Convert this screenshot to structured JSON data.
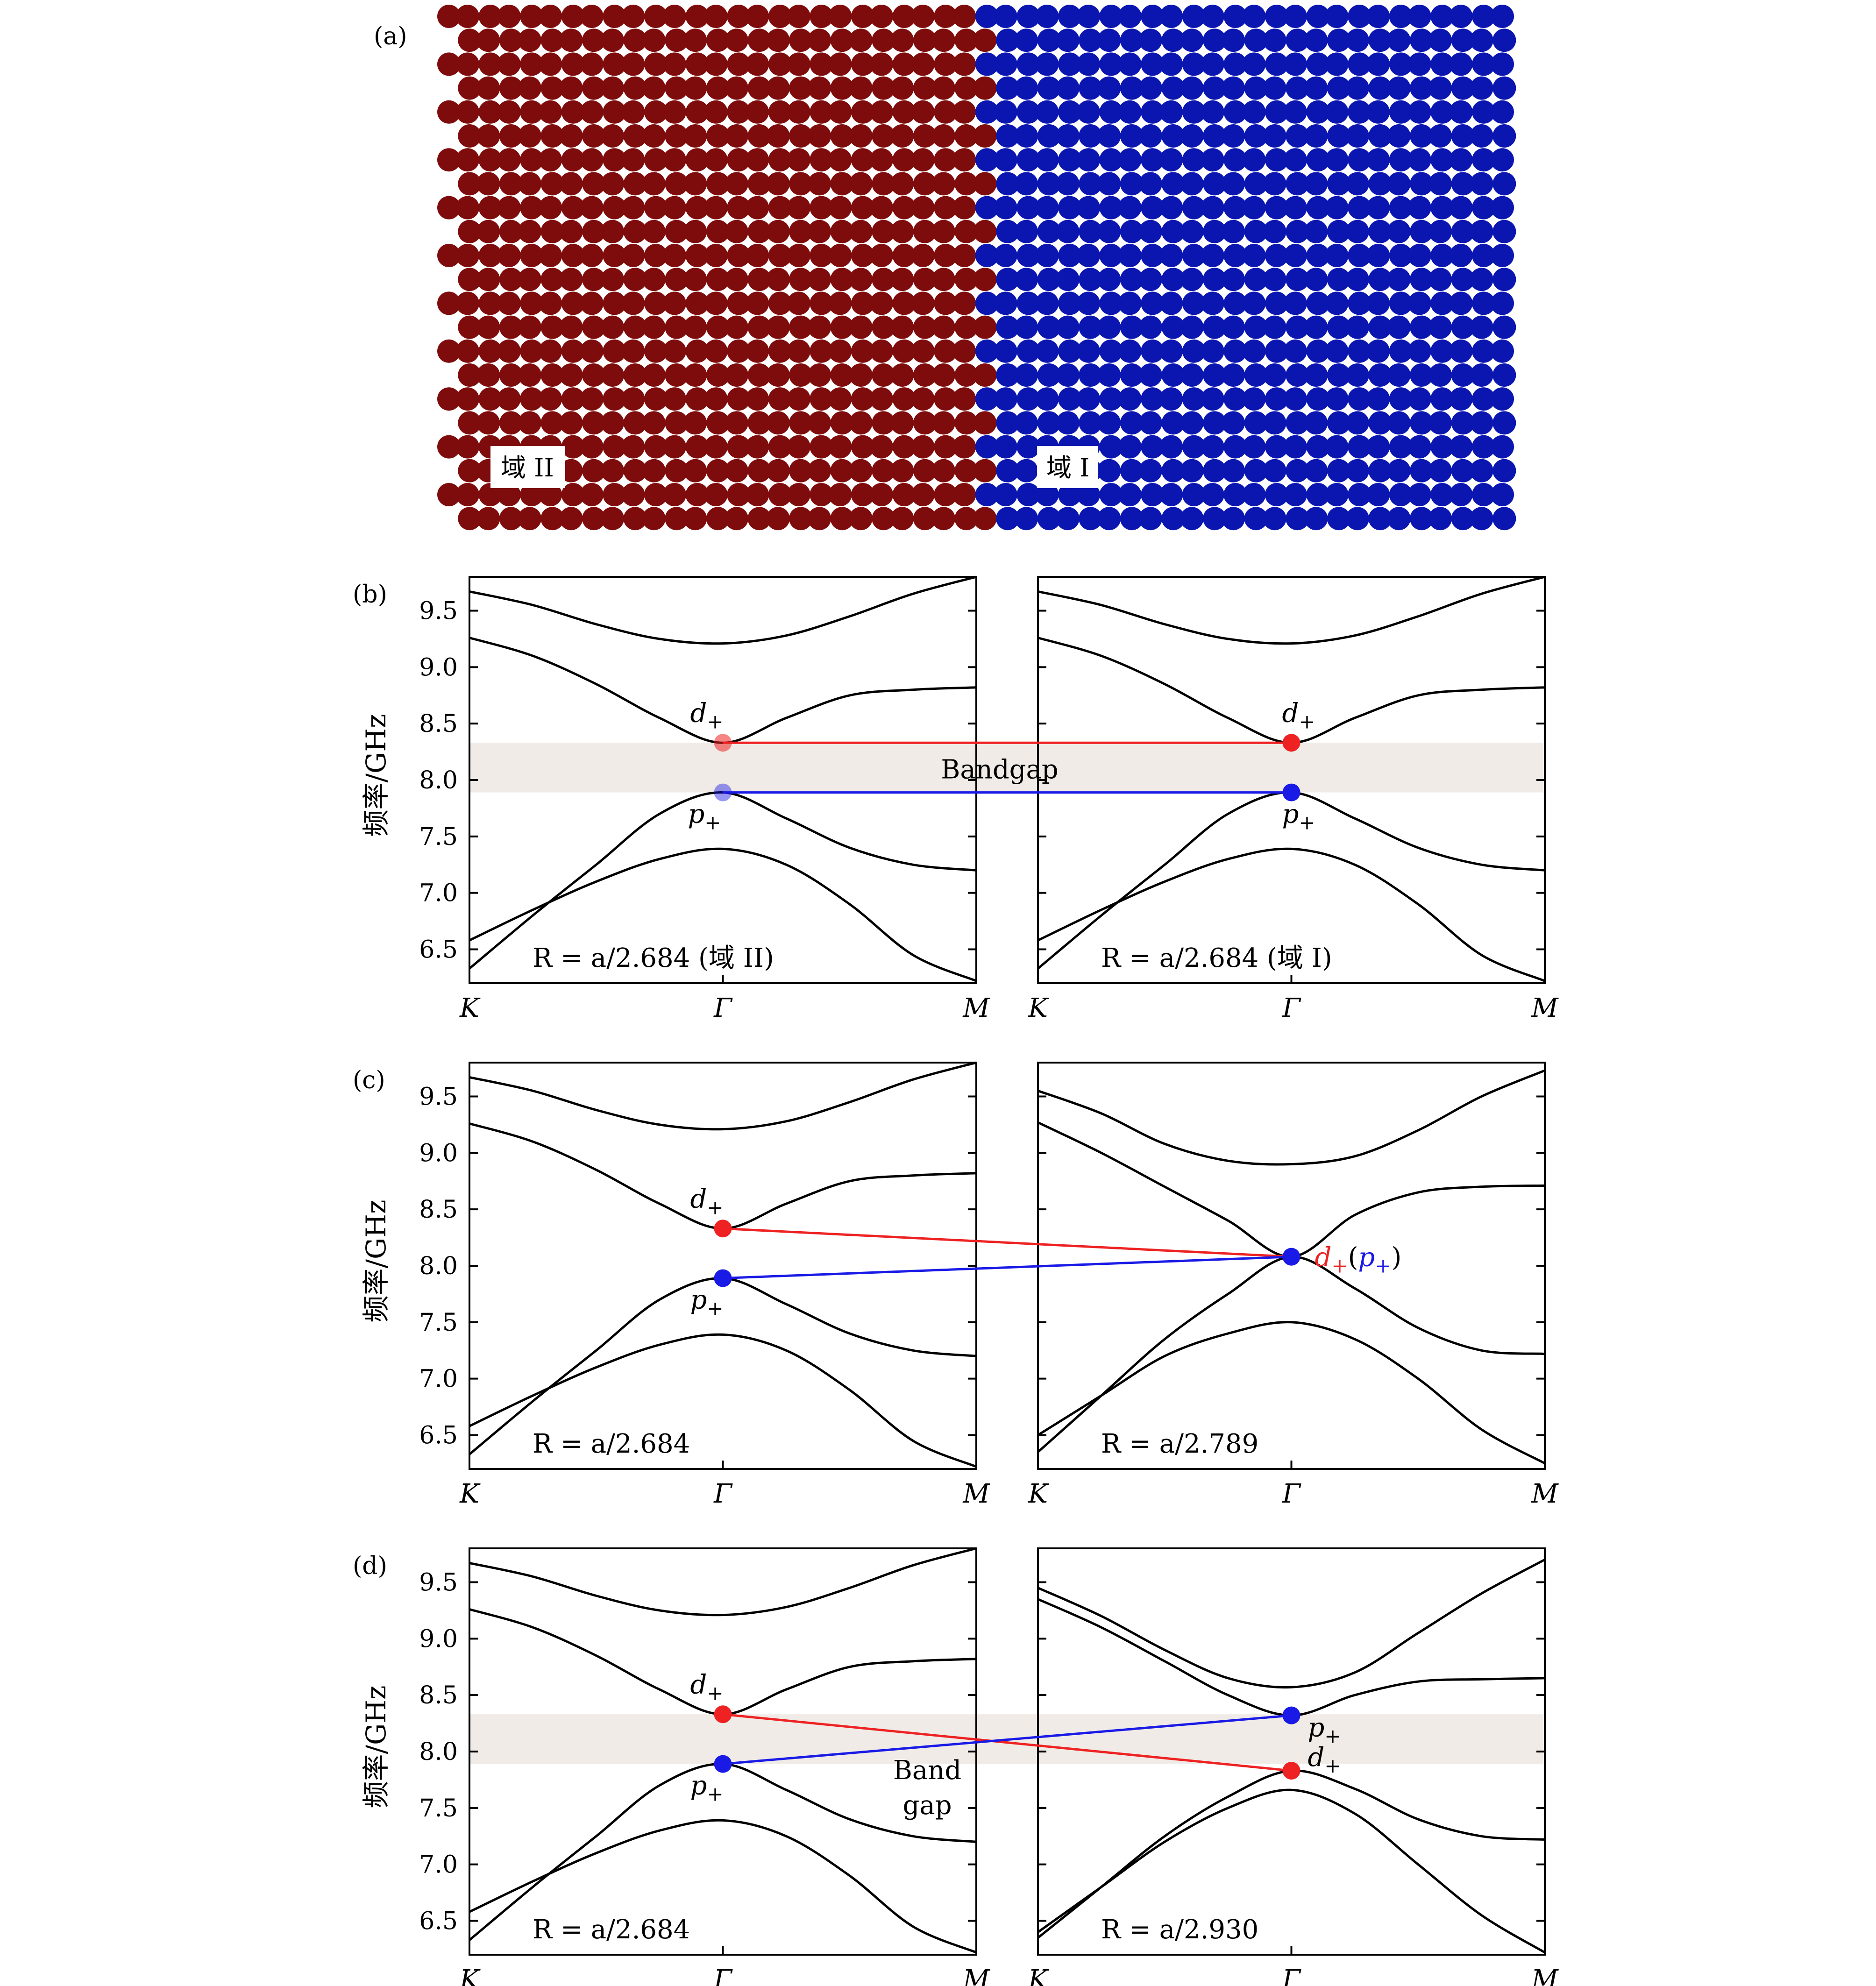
{
  "figure": {
    "panel_labels": [
      "(a)",
      "(b)",
      "(c)",
      "(d)"
    ],
    "lattice": {
      "domain_left_label": "域 II",
      "domain_right_label": "域 I",
      "left_color": "#7f0c0c",
      "right_color": "#0b16b0"
    },
    "ylabel": "频率/GHz",
    "xticks": [
      "K",
      "Γ",
      "M"
    ],
    "yticks": [
      "6.5",
      "7.0",
      "7.5",
      "8.0",
      "8.5",
      "9.0",
      "9.5"
    ],
    "ylim": [
      6.2,
      9.8
    ],
    "colors": {
      "d_mode": "#ee2222",
      "p_mode": "#1a1ae6",
      "bandgap": "#f0ebe6",
      "band": "#000000"
    },
    "mode_labels": {
      "d": "d",
      "p": "p",
      "sub": "+"
    },
    "bandgap_label": "Bandgap",
    "bandgap_label_line1": "Band",
    "bandgap_label_line2": "gap",
    "degenerate_label": {
      "d": "d",
      "open": "(",
      "p": "p",
      "close": ")"
    }
  },
  "chart_data": [
    {
      "type": "line",
      "panel": "b-left",
      "annotation": "R = a/2.684 (域 II)",
      "x_labels": [
        "K",
        "Γ",
        "M"
      ],
      "ylim": [
        6.2,
        9.8
      ],
      "d_plus": 8.33,
      "p_plus": 7.89,
      "bandgap": [
        7.89,
        8.33
      ],
      "series": [
        {
          "points": [
            [
              0,
              6.33
            ],
            [
              0.25,
              6.8
            ],
            [
              0.5,
              7.25
            ],
            [
              0.75,
              7.7
            ],
            [
              1,
              7.89
            ],
            [
              1.25,
              7.66
            ],
            [
              1.5,
              7.4
            ],
            [
              1.75,
              7.25
            ],
            [
              2,
              7.2
            ]
          ]
        },
        {
          "points": [
            [
              0,
              6.58
            ],
            [
              0.25,
              6.85
            ],
            [
              0.5,
              7.1
            ],
            [
              0.75,
              7.3
            ],
            [
              1,
              7.39
            ],
            [
              1.25,
              7.25
            ],
            [
              1.5,
              6.9
            ],
            [
              1.75,
              6.45
            ],
            [
              2,
              6.22
            ]
          ]
        },
        {
          "points": [
            [
              0,
              9.26
            ],
            [
              0.25,
              9.1
            ],
            [
              0.5,
              8.85
            ],
            [
              0.75,
              8.55
            ],
            [
              1,
              8.33
            ],
            [
              1.25,
              8.55
            ],
            [
              1.5,
              8.75
            ],
            [
              1.75,
              8.8
            ],
            [
              2,
              8.82
            ]
          ]
        },
        {
          "points": [
            [
              0,
              9.67
            ],
            [
              0.25,
              9.55
            ],
            [
              0.5,
              9.38
            ],
            [
              0.75,
              9.25
            ],
            [
              1,
              9.21
            ],
            [
              1.25,
              9.28
            ],
            [
              1.5,
              9.45
            ],
            [
              1.75,
              9.65
            ],
            [
              2,
              9.8
            ]
          ]
        }
      ]
    },
    {
      "type": "line",
      "panel": "b-right",
      "annotation": "R = a/2.684 (域 I)",
      "x_labels": [
        "K",
        "Γ",
        "M"
      ],
      "ylim": [
        6.2,
        9.8
      ],
      "d_plus": 8.33,
      "p_plus": 7.89,
      "bandgap": [
        7.89,
        8.33
      ],
      "series": [
        {
          "points": [
            [
              0,
              6.33
            ],
            [
              0.25,
              6.8
            ],
            [
              0.5,
              7.25
            ],
            [
              0.75,
              7.7
            ],
            [
              1,
              7.89
            ],
            [
              1.25,
              7.66
            ],
            [
              1.5,
              7.4
            ],
            [
              1.75,
              7.25
            ],
            [
              2,
              7.2
            ]
          ]
        },
        {
          "points": [
            [
              0,
              6.58
            ],
            [
              0.25,
              6.85
            ],
            [
              0.5,
              7.1
            ],
            [
              0.75,
              7.3
            ],
            [
              1,
              7.39
            ],
            [
              1.25,
              7.25
            ],
            [
              1.5,
              6.9
            ],
            [
              1.75,
              6.45
            ],
            [
              2,
              6.22
            ]
          ]
        },
        {
          "points": [
            [
              0,
              9.26
            ],
            [
              0.25,
              9.1
            ],
            [
              0.5,
              8.85
            ],
            [
              0.75,
              8.55
            ],
            [
              1,
              8.33
            ],
            [
              1.25,
              8.55
            ],
            [
              1.5,
              8.75
            ],
            [
              1.75,
              8.8
            ],
            [
              2,
              8.82
            ]
          ]
        },
        {
          "points": [
            [
              0,
              9.67
            ],
            [
              0.25,
              9.55
            ],
            [
              0.5,
              9.38
            ],
            [
              0.75,
              9.25
            ],
            [
              1,
              9.21
            ],
            [
              1.25,
              9.28
            ],
            [
              1.5,
              9.45
            ],
            [
              1.75,
              9.65
            ],
            [
              2,
              9.8
            ]
          ]
        }
      ]
    },
    {
      "type": "line",
      "panel": "c-left",
      "annotation": "R = a/2.684",
      "x_labels": [
        "K",
        "Γ",
        "M"
      ],
      "ylim": [
        6.2,
        9.8
      ],
      "d_plus": 8.33,
      "p_plus": 7.89,
      "series": [
        {
          "points": [
            [
              0,
              6.33
            ],
            [
              0.25,
              6.8
            ],
            [
              0.5,
              7.25
            ],
            [
              0.75,
              7.7
            ],
            [
              1,
              7.89
            ],
            [
              1.25,
              7.66
            ],
            [
              1.5,
              7.4
            ],
            [
              1.75,
              7.25
            ],
            [
              2,
              7.2
            ]
          ]
        },
        {
          "points": [
            [
              0,
              6.58
            ],
            [
              0.25,
              6.85
            ],
            [
              0.5,
              7.1
            ],
            [
              0.75,
              7.3
            ],
            [
              1,
              7.39
            ],
            [
              1.25,
              7.25
            ],
            [
              1.5,
              6.9
            ],
            [
              1.75,
              6.45
            ],
            [
              2,
              6.22
            ]
          ]
        },
        {
          "points": [
            [
              0,
              9.26
            ],
            [
              0.25,
              9.1
            ],
            [
              0.5,
              8.85
            ],
            [
              0.75,
              8.55
            ],
            [
              1,
              8.33
            ],
            [
              1.25,
              8.55
            ],
            [
              1.5,
              8.75
            ],
            [
              1.75,
              8.8
            ],
            [
              2,
              8.82
            ]
          ]
        },
        {
          "points": [
            [
              0,
              9.67
            ],
            [
              0.25,
              9.55
            ],
            [
              0.5,
              9.38
            ],
            [
              0.75,
              9.25
            ],
            [
              1,
              9.21
            ],
            [
              1.25,
              9.28
            ],
            [
              1.5,
              9.45
            ],
            [
              1.75,
              9.65
            ],
            [
              2,
              9.8
            ]
          ]
        }
      ]
    },
    {
      "type": "line",
      "panel": "c-right",
      "annotation": "R = a/2.789",
      "x_labels": [
        "K",
        "Γ",
        "M"
      ],
      "ylim": [
        6.2,
        9.8
      ],
      "degenerate": 8.08,
      "series": [
        {
          "points": [
            [
              0,
              6.35
            ],
            [
              0.25,
              6.85
            ],
            [
              0.5,
              7.35
            ],
            [
              0.75,
              7.75
            ],
            [
              1,
              8.08
            ],
            [
              1.25,
              7.8
            ],
            [
              1.5,
              7.45
            ],
            [
              1.75,
              7.25
            ],
            [
              2,
              7.22
            ]
          ]
        },
        {
          "points": [
            [
              0,
              6.5
            ],
            [
              0.25,
              6.85
            ],
            [
              0.5,
              7.2
            ],
            [
              0.75,
              7.4
            ],
            [
              1,
              7.5
            ],
            [
              1.25,
              7.35
            ],
            [
              1.5,
              7.0
            ],
            [
              1.75,
              6.55
            ],
            [
              2,
              6.25
            ]
          ]
        },
        {
          "points": [
            [
              0,
              9.27
            ],
            [
              0.25,
              9.0
            ],
            [
              0.5,
              8.7
            ],
            [
              0.75,
              8.4
            ],
            [
              1,
              8.08
            ],
            [
              1.25,
              8.45
            ],
            [
              1.5,
              8.65
            ],
            [
              1.75,
              8.7
            ],
            [
              2,
              8.71
            ]
          ]
        },
        {
          "points": [
            [
              0,
              9.55
            ],
            [
              0.25,
              9.35
            ],
            [
              0.5,
              9.08
            ],
            [
              0.75,
              8.93
            ],
            [
              1,
              8.9
            ],
            [
              1.25,
              8.97
            ],
            [
              1.5,
              9.2
            ],
            [
              1.75,
              9.5
            ],
            [
              2,
              9.73
            ]
          ]
        }
      ]
    },
    {
      "type": "line",
      "panel": "d-left",
      "annotation": "R = a/2.684",
      "x_labels": [
        "K",
        "Γ",
        "M"
      ],
      "ylim": [
        6.2,
        9.8
      ],
      "d_plus": 8.33,
      "p_plus": 7.89,
      "bandgap": [
        7.89,
        8.33
      ],
      "series": [
        {
          "points": [
            [
              0,
              6.33
            ],
            [
              0.25,
              6.8
            ],
            [
              0.5,
              7.25
            ],
            [
              0.75,
              7.7
            ],
            [
              1,
              7.89
            ],
            [
              1.25,
              7.66
            ],
            [
              1.5,
              7.4
            ],
            [
              1.75,
              7.25
            ],
            [
              2,
              7.2
            ]
          ]
        },
        {
          "points": [
            [
              0,
              6.58
            ],
            [
              0.25,
              6.85
            ],
            [
              0.5,
              7.1
            ],
            [
              0.75,
              7.3
            ],
            [
              1,
              7.39
            ],
            [
              1.25,
              7.25
            ],
            [
              1.5,
              6.9
            ],
            [
              1.75,
              6.45
            ],
            [
              2,
              6.22
            ]
          ]
        },
        {
          "points": [
            [
              0,
              9.26
            ],
            [
              0.25,
              9.1
            ],
            [
              0.5,
              8.85
            ],
            [
              0.75,
              8.55
            ],
            [
              1,
              8.33
            ],
            [
              1.25,
              8.55
            ],
            [
              1.5,
              8.75
            ],
            [
              1.75,
              8.8
            ],
            [
              2,
              8.82
            ]
          ]
        },
        {
          "points": [
            [
              0,
              9.67
            ],
            [
              0.25,
              9.55
            ],
            [
              0.5,
              9.38
            ],
            [
              0.75,
              9.25
            ],
            [
              1,
              9.21
            ],
            [
              1.25,
              9.28
            ],
            [
              1.5,
              9.45
            ],
            [
              1.75,
              9.65
            ],
            [
              2,
              9.8
            ]
          ]
        }
      ]
    },
    {
      "type": "line",
      "panel": "d-right",
      "annotation": "R = a/2.930",
      "x_labels": [
        "K",
        "Γ",
        "M"
      ],
      "ylim": [
        6.2,
        9.8
      ],
      "d_plus": 7.83,
      "p_plus": 8.32,
      "series": [
        {
          "points": [
            [
              0,
              6.35
            ],
            [
              0.25,
              6.8
            ],
            [
              0.5,
              7.25
            ],
            [
              0.75,
              7.6
            ],
            [
              1,
              7.83
            ],
            [
              1.25,
              7.67
            ],
            [
              1.5,
              7.4
            ],
            [
              1.75,
              7.25
            ],
            [
              2,
              7.22
            ]
          ]
        },
        {
          "points": [
            [
              0,
              6.4
            ],
            [
              0.25,
              6.8
            ],
            [
              0.5,
              7.2
            ],
            [
              0.75,
              7.5
            ],
            [
              1,
              7.66
            ],
            [
              1.25,
              7.45
            ],
            [
              1.5,
              7.0
            ],
            [
              1.75,
              6.55
            ],
            [
              2,
              6.22
            ]
          ]
        },
        {
          "points": [
            [
              0,
              9.35
            ],
            [
              0.25,
              9.1
            ],
            [
              0.5,
              8.8
            ],
            [
              0.75,
              8.5
            ],
            [
              1,
              8.32
            ],
            [
              1.25,
              8.5
            ],
            [
              1.5,
              8.62
            ],
            [
              1.75,
              8.64
            ],
            [
              2,
              8.65
            ]
          ]
        },
        {
          "points": [
            [
              0,
              9.45
            ],
            [
              0.25,
              9.2
            ],
            [
              0.5,
              8.9
            ],
            [
              0.75,
              8.65
            ],
            [
              1,
              8.57
            ],
            [
              1.25,
              8.7
            ],
            [
              1.5,
              9.05
            ],
            [
              1.75,
              9.4
            ],
            [
              2,
              9.7
            ]
          ]
        }
      ]
    }
  ]
}
